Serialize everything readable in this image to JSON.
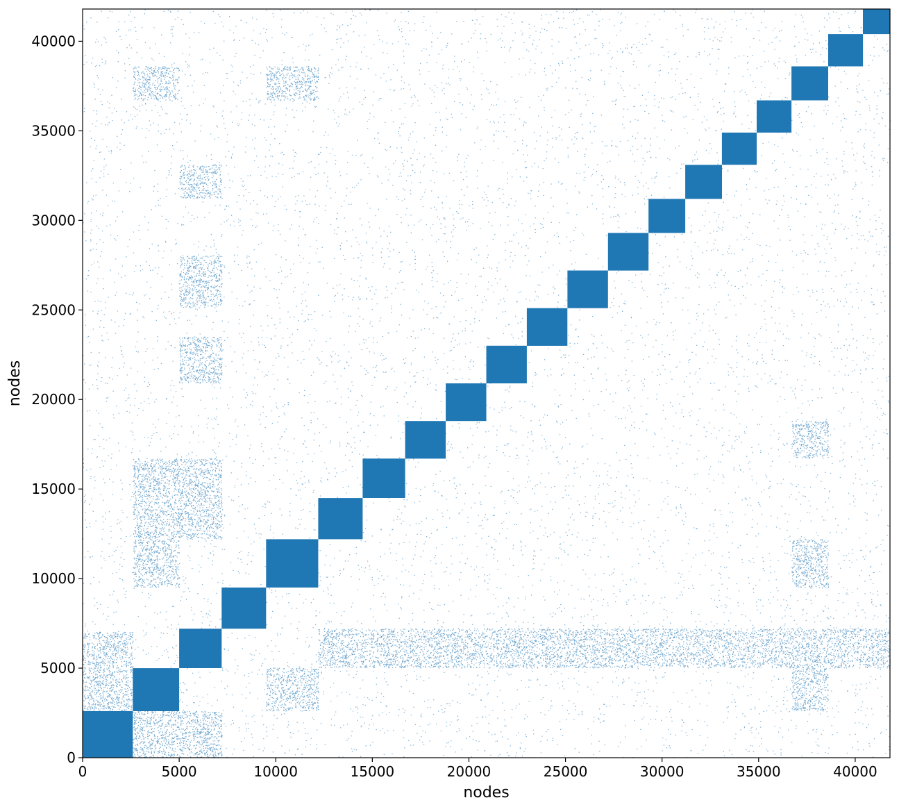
{
  "chart_data": {
    "type": "scatter",
    "title": "",
    "xlabel": "nodes",
    "ylabel": "nodes",
    "xlim": [
      0,
      41800
    ],
    "ylim": [
      0,
      41800
    ],
    "xticks": [
      0,
      5000,
      10000,
      15000,
      20000,
      25000,
      30000,
      35000,
      40000
    ],
    "yticks": [
      0,
      5000,
      10000,
      15000,
      20000,
      25000,
      30000,
      35000,
      40000
    ],
    "xtick_labels": [
      "0",
      "5000",
      "10000",
      "15000",
      "20000",
      "25000",
      "30000",
      "35000",
      "40000"
    ],
    "ytick_labels": [
      "0",
      "5000",
      "10000",
      "15000",
      "20000",
      "25000",
      "30000",
      "35000",
      "40000"
    ],
    "grid": false,
    "marker_color": "#1f77b4",
    "series": [
      {
        "kind": "diagonal_blocks",
        "description_of_values": "community block ranges [start, end] in node index units",
        "blocks": [
          [
            0,
            2600
          ],
          [
            2600,
            5000
          ],
          [
            5000,
            7200
          ],
          [
            7200,
            9500
          ],
          [
            9500,
            12200
          ],
          [
            12200,
            14500
          ],
          [
            14500,
            16700
          ],
          [
            16700,
            18800
          ],
          [
            18800,
            20900
          ],
          [
            20900,
            23000
          ],
          [
            23000,
            25100
          ],
          [
            25100,
            27200
          ],
          [
            27200,
            29300
          ],
          [
            29300,
            31200
          ],
          [
            31200,
            33100
          ],
          [
            33100,
            34900
          ],
          [
            34900,
            36700
          ],
          [
            36700,
            38600
          ],
          [
            38600,
            40400
          ],
          [
            40400,
            41800
          ]
        ]
      },
      {
        "kind": "off_diagonal_dense_regions",
        "regions": [
          {
            "x": [
              0,
              2600
            ],
            "y": [
              2600,
              7000
            ]
          },
          {
            "x": [
              2600,
              7200
            ],
            "y": [
              0,
              2600
            ]
          },
          {
            "x": [
              2600,
              5000
            ],
            "y": [
              9500,
              12200
            ]
          },
          {
            "x": [
              2600,
              5000
            ],
            "y": [
              12200,
              16700
            ]
          },
          {
            "x": [
              5000,
              7200
            ],
            "y": [
              12200,
              16700
            ]
          },
          {
            "x": [
              5000,
              7200
            ],
            "y": [
              20900,
              23500
            ]
          },
          {
            "x": [
              5000,
              7200
            ],
            "y": [
              25100,
              28000
            ]
          },
          {
            "x": [
              5000,
              7200
            ],
            "y": [
              31200,
              33100
            ]
          },
          {
            "x": [
              2600,
              5000
            ],
            "y": [
              36700,
              38600
            ]
          },
          {
            "x": [
              9500,
              12200
            ],
            "y": [
              2600,
              5000
            ]
          },
          {
            "x": [
              9500,
              12200
            ],
            "y": [
              36700,
              38600
            ]
          },
          {
            "x": [
              12200,
              41800
            ],
            "y": [
              5000,
              7200
            ]
          },
          {
            "x": [
              36700,
              38600
            ],
            "y": [
              9500,
              12200
            ]
          },
          {
            "x": [
              36700,
              38600
            ],
            "y": [
              16700,
              18800
            ]
          },
          {
            "x": [
              36700,
              38600
            ],
            "y": [
              2600,
              5000
            ]
          }
        ]
      }
    ]
  }
}
